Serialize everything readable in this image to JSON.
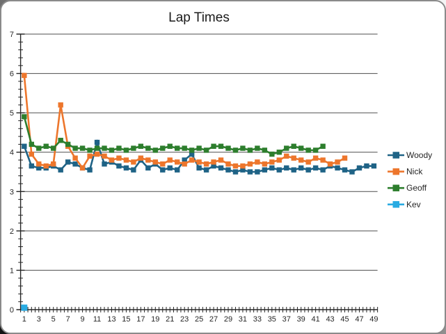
{
  "chart_data": {
    "type": "line",
    "title": "Lap Times",
    "xlabel": "",
    "ylabel": "",
    "grid": true,
    "legend_position": "right",
    "x_axis": {
      "min": 1,
      "max": 49,
      "tick_labels": [
        "1",
        "3",
        "5",
        "7",
        "9",
        "11",
        "13",
        "15",
        "17",
        "19",
        "21",
        "23",
        "25",
        "27",
        "29",
        "31",
        "33",
        "35",
        "37",
        "39",
        "41",
        "43",
        "45",
        "47",
        "49"
      ],
      "minor_tick_step": 0.5
    },
    "y_axis": {
      "min": 0,
      "max": 7,
      "tick_labels": [
        "0",
        "1",
        "2",
        "3",
        "4",
        "5",
        "6",
        "7"
      ],
      "major_step": 1,
      "minor_step": 0.2
    },
    "series": [
      {
        "name": "Woody",
        "color": "#1f6386",
        "start_x": 1,
        "values": [
          4.15,
          3.65,
          3.6,
          3.6,
          3.65,
          3.55,
          3.75,
          3.7,
          3.6,
          3.55,
          4.25,
          3.7,
          3.75,
          3.65,
          3.6,
          3.55,
          3.8,
          3.6,
          3.7,
          3.55,
          3.6,
          3.55,
          3.8,
          3.95,
          3.6,
          3.55,
          3.65,
          3.6,
          3.55,
          3.5,
          3.55,
          3.5,
          3.5,
          3.55,
          3.6,
          3.55,
          3.6,
          3.55,
          3.6,
          3.55,
          3.6,
          3.55,
          3.65,
          3.6,
          3.55,
          3.5,
          3.6,
          3.65,
          3.65
        ]
      },
      {
        "name": "Nick",
        "color": "#ed762c",
        "start_x": 1,
        "values": [
          5.95,
          3.95,
          3.7,
          3.65,
          3.7,
          5.2,
          4.15,
          3.85,
          3.6,
          3.9,
          3.95,
          3.9,
          3.8,
          3.85,
          3.8,
          3.75,
          3.85,
          3.8,
          3.75,
          3.7,
          3.8,
          3.75,
          3.7,
          3.8,
          3.75,
          3.7,
          3.75,
          3.8,
          3.7,
          3.65,
          3.65,
          3.7,
          3.75,
          3.7,
          3.75,
          3.8,
          3.9,
          3.85,
          3.8,
          3.75,
          3.85,
          3.8,
          3.7,
          3.75,
          3.85
        ]
      },
      {
        "name": "Geoff",
        "color": "#2d7e2d",
        "start_x": 1,
        "values": [
          4.9,
          4.2,
          4.1,
          4.15,
          4.1,
          4.3,
          4.2,
          4.1,
          4.1,
          4.05,
          4.1,
          4.1,
          4.05,
          4.1,
          4.05,
          4.1,
          4.15,
          4.1,
          4.05,
          4.1,
          4.15,
          4.1,
          4.1,
          4.05,
          4.1,
          4.05,
          4.15,
          4.15,
          4.1,
          4.05,
          4.1,
          4.05,
          4.1,
          4.05,
          3.95,
          4.0,
          4.1,
          4.15,
          4.1,
          4.05,
          4.05,
          4.15
        ]
      },
      {
        "name": "Kev",
        "color": "#29abe2",
        "start_x": 1,
        "values": [
          0.05
        ]
      }
    ]
  },
  "colors": {
    "panel_bg": "#ffffff",
    "panel_border": "#8a8a8a",
    "grid_line": "#4d4d4d",
    "axis_line": "#262626",
    "text": "#262626"
  }
}
